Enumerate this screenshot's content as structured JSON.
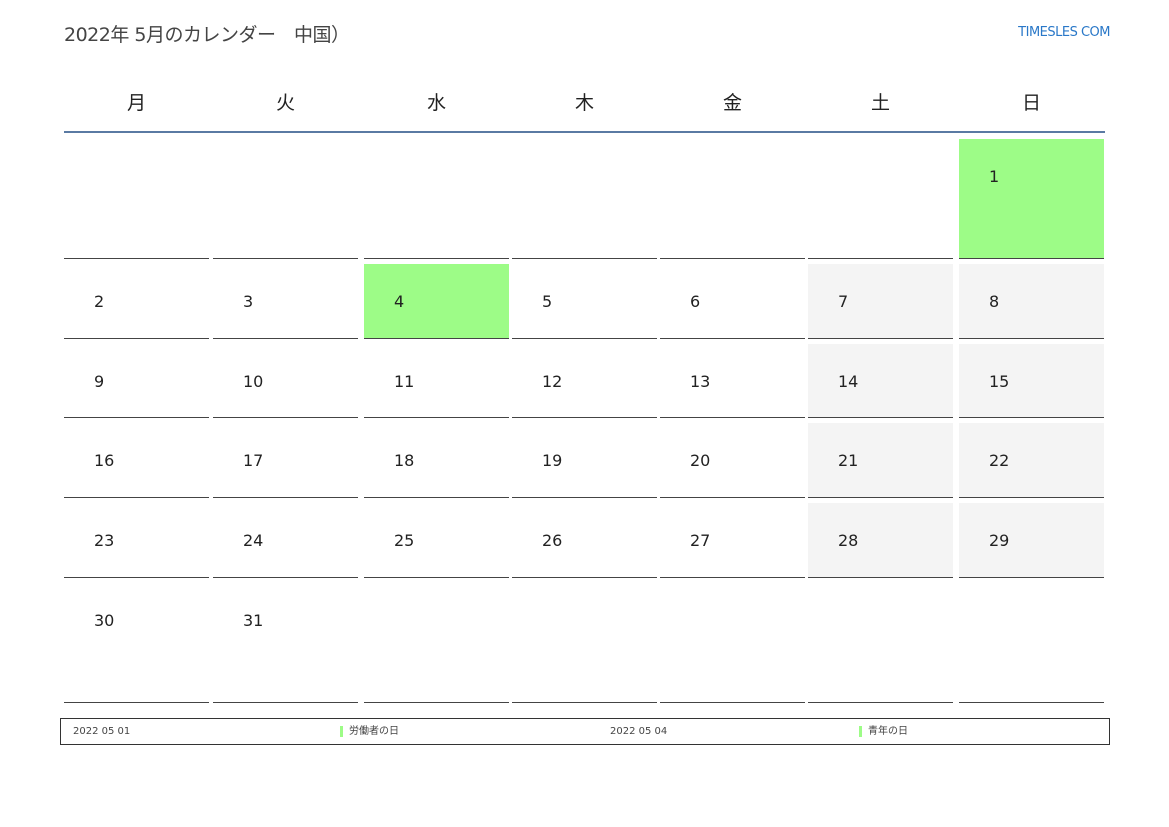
{
  "header": {
    "title": "2022年 5月のカレンダー　中国）",
    "logo": "TIMESLES COM"
  },
  "weekdays": [
    "月",
    "火",
    "水",
    "木",
    "金",
    "土",
    "日"
  ],
  "colors": {
    "holiday": "#9dfc87",
    "weekend": "#f4f4f4",
    "rule": "#5a7aa3",
    "logo": "#2a78c8"
  },
  "weeks": [
    [
      null,
      null,
      null,
      null,
      null,
      null,
      {
        "day": "1",
        "holiday": true
      }
    ],
    [
      {
        "day": "2"
      },
      {
        "day": "3"
      },
      {
        "day": "4",
        "holiday": true
      },
      {
        "day": "5"
      },
      {
        "day": "6"
      },
      {
        "day": "7"
      },
      {
        "day": "8"
      }
    ],
    [
      {
        "day": "9"
      },
      {
        "day": "10"
      },
      {
        "day": "11"
      },
      {
        "day": "12"
      },
      {
        "day": "13"
      },
      {
        "day": "14"
      },
      {
        "day": "15"
      }
    ],
    [
      {
        "day": "16"
      },
      {
        "day": "17"
      },
      {
        "day": "18"
      },
      {
        "day": "19"
      },
      {
        "day": "20"
      },
      {
        "day": "21"
      },
      {
        "day": "22"
      }
    ],
    [
      {
        "day": "23"
      },
      {
        "day": "24"
      },
      {
        "day": "25"
      },
      {
        "day": "26"
      },
      {
        "day": "27"
      },
      {
        "day": "28"
      },
      {
        "day": "29"
      }
    ],
    [
      {
        "day": "30"
      },
      {
        "day": "31"
      },
      null,
      null,
      null,
      null,
      null
    ]
  ],
  "holidays": [
    {
      "date": "2022 05 01",
      "name": "労働者の日"
    },
    {
      "date": "2022 05 04",
      "name": "青年の日"
    }
  ]
}
